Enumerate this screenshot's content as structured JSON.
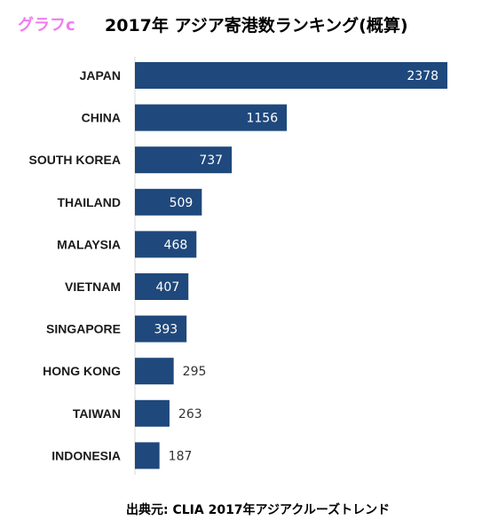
{
  "header": {
    "graph_label": "グラフc",
    "title": "2017年 アジア寄港数ランキング(概算)"
  },
  "source": "出典元: CLIA 2017年アジアクルーズトレンド",
  "colors": {
    "bar": "#1f487c",
    "graph_label": "#f07cf0"
  },
  "chart_data": {
    "type": "bar",
    "orientation": "horizontal",
    "title": "2017年 アジア寄港数ランキング(概算)",
    "categories": [
      "JAPAN",
      "CHINA",
      "SOUTH KOREA",
      "THAILAND",
      "MALAYSIA",
      "VIETNAM",
      "SINGAPORE",
      "HONG KONG",
      "TAIWAN",
      "INDONESIA"
    ],
    "values": [
      2378,
      1156,
      737,
      509,
      468,
      407,
      393,
      295,
      263,
      187
    ],
    "xlim": [
      0,
      2378
    ],
    "grid": false,
    "legend": "none"
  }
}
